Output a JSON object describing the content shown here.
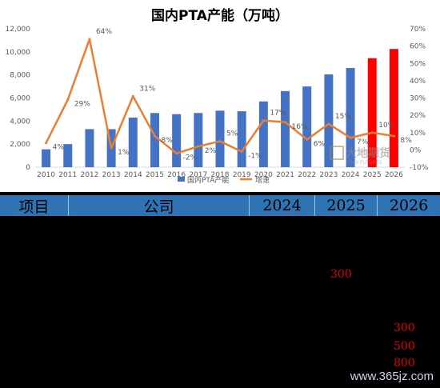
{
  "chart_data": {
    "type": "bar",
    "title": "国内PTA产能（万吨）",
    "categories": [
      "2010",
      "2011",
      "2012",
      "2013",
      "2014",
      "2015",
      "2016",
      "2017",
      "2018",
      "2019",
      "2020",
      "2021",
      "2022",
      "2023",
      "2024",
      "2025",
      "2026"
    ],
    "series": [
      {
        "name": "国内PTA产能",
        "type": "bar",
        "axis": "left",
        "values": [
          1550,
          2000,
          3300,
          3300,
          4300,
          4700,
          4600,
          4700,
          4900,
          4850,
          5700,
          6600,
          7000,
          8050,
          8600,
          9450,
          10250
        ],
        "colors": [
          "#4472c4",
          "#4472c4",
          "#4472c4",
          "#4472c4",
          "#4472c4",
          "#4472c4",
          "#4472c4",
          "#4472c4",
          "#4472c4",
          "#4472c4",
          "#4472c4",
          "#4472c4",
          "#4472c4",
          "#4472c4",
          "#4472c4",
          "#ff0000",
          "#ff0000"
        ]
      },
      {
        "name": "增速",
        "type": "line",
        "axis": "right",
        "color": "#ed7d31",
        "values": [
          4,
          29,
          64,
          1,
          31,
          8,
          -2,
          2,
          5,
          -1,
          17,
          16,
          6,
          15,
          7,
          10,
          8
        ],
        "labels": [
          "4%",
          "29%",
          "64%",
          "1%",
          "31%",
          "8%",
          "-2%",
          "2%",
          "5%",
          "-1%",
          "17%",
          "16%",
          "6%",
          "15%",
          "7%",
          "10%",
          "8%"
        ]
      }
    ],
    "y_left": {
      "min": 0,
      "max": 12000,
      "ticks": [
        "0",
        "2,000",
        "4,000",
        "6,000",
        "8,000",
        "10,000",
        "12,000"
      ]
    },
    "y_right": {
      "min": -10,
      "max": 70,
      "ticks": [
        "-10%",
        "0%",
        "10%",
        "20%",
        "30%",
        "40%",
        "50%",
        "60%",
        "70%"
      ]
    },
    "grid": false,
    "legend_position": "bottom"
  },
  "logo": {
    "text": "大地期货",
    "sub": "DADI FUTURES"
  },
  "table": {
    "headers": [
      "项目",
      "公司",
      "2024",
      "2025",
      "2026"
    ],
    "values": [
      "300",
      "300",
      "500",
      "800"
    ]
  },
  "watermark": "www.365jz.com"
}
